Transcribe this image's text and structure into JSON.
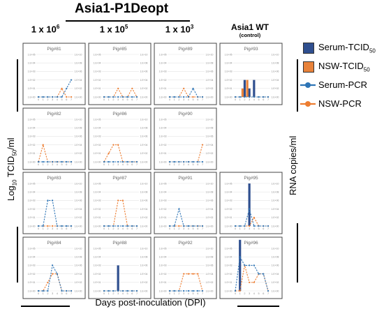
{
  "figure": {
    "title": "Asia1-P1Deopt",
    "wt_title": "Asia1 WT",
    "wt_subtitle": "(control)",
    "col_headers_main": "1 x 10",
    "col_header_exps": [
      "6",
      "5",
      "3"
    ],
    "y_left_label_main": "Log",
    "y_left_label_sub": "10",
    "y_left_label_rest": " TCID",
    "y_left_label_sub2": "50",
    "y_left_label_end": "/ml",
    "y_right_label": "RNA copies/ml",
    "x_label": "Days post-inoculation (DPI)"
  },
  "legend": [
    {
      "label": "Serum-TCID",
      "sub": "50",
      "kind": "bar",
      "color": "#2f4f8f"
    },
    {
      "label": "NSW-TCID",
      "sub": "50",
      "kind": "bar",
      "color": "#e8823a"
    },
    {
      "label": "Serum-PCR",
      "sub": "",
      "kind": "line",
      "color": "#2e75b6"
    },
    {
      "label": "NSW-PCR",
      "sub": "",
      "kind": "line",
      "color": "#ed7d31"
    }
  ],
  "chart_data": {
    "type": "line",
    "x": [
      0,
      1,
      2,
      3,
      4,
      5,
      6,
      7
    ],
    "x_tick_labels": [
      "0",
      "1",
      "2",
      "3",
      "4",
      "5",
      "6",
      "7"
    ],
    "ylim_left": [
      0,
      5
    ],
    "ylim_right": [
      0,
      10
    ],
    "left_tick_labels": [
      "1.E+00",
      "1.E+01",
      "1.E+02",
      "1.E+03",
      "1.E+04",
      "1.E+05"
    ],
    "right_tick_labels": [
      "1.E+00",
      "1.E+02",
      "1.E+04",
      "1.E+06",
      "1.E+08",
      "1.E+10"
    ],
    "panels": [
      {
        "title": "Pig#81",
        "serum_pcr": [
          0,
          0,
          0,
          0,
          0,
          0,
          2,
          4
        ],
        "nsw_pcr": [
          0,
          0,
          0,
          0,
          0,
          2,
          0,
          0
        ],
        "serum_tcid": [
          0,
          0,
          0,
          0,
          0,
          0,
          0,
          0
        ],
        "nsw_tcid": [
          0,
          0,
          0,
          0,
          0,
          0,
          0,
          0
        ]
      },
      {
        "title": "Pig#85",
        "serum_pcr": [
          0,
          0,
          0,
          0,
          0,
          0,
          0,
          0
        ],
        "nsw_pcr": [
          0,
          0,
          0,
          2,
          0,
          0,
          2,
          0
        ],
        "serum_tcid": [
          0,
          0,
          0,
          0,
          0,
          0,
          0,
          0
        ],
        "nsw_tcid": [
          0,
          0,
          0,
          0,
          0,
          0,
          0,
          0
        ]
      },
      {
        "title": "Pig#89",
        "serum_pcr": [
          0,
          0,
          0,
          0,
          0,
          2,
          0,
          0
        ],
        "nsw_pcr": [
          0,
          0,
          0,
          2,
          0,
          0,
          0,
          0
        ],
        "serum_tcid": [
          0,
          0,
          0,
          0,
          0,
          0,
          0,
          0
        ],
        "nsw_tcid": [
          0,
          0,
          0,
          0,
          0,
          0,
          0,
          0
        ]
      },
      {
        "title": "Pig#93",
        "serum_pcr": [
          0,
          0,
          0,
          0,
          0,
          0,
          0,
          0
        ],
        "nsw_pcr": [
          0,
          0,
          0,
          0,
          0,
          0,
          0,
          0
        ],
        "serum_tcid": [
          0,
          0,
          2,
          1,
          2,
          0,
          0,
          0
        ],
        "nsw_tcid": [
          0,
          0,
          1,
          2,
          0,
          0,
          0,
          0
        ]
      },
      {
        "title": "Pig#82",
        "serum_pcr": [
          0,
          0,
          0,
          0,
          0,
          0,
          0,
          0
        ],
        "nsw_pcr": [
          0,
          4,
          0,
          0,
          0,
          0,
          0,
          0
        ],
        "serum_tcid": [
          0,
          0,
          0,
          0,
          0,
          0,
          0,
          0
        ],
        "nsw_tcid": [
          0,
          0,
          0,
          0,
          0,
          0,
          0,
          0
        ]
      },
      {
        "title": "Pig#86",
        "serum_pcr": [
          0,
          0,
          0,
          0,
          0,
          0,
          0,
          0
        ],
        "nsw_pcr": [
          0,
          2,
          4,
          4,
          0,
          0,
          0,
          0
        ],
        "serum_tcid": [
          0,
          0,
          0,
          0,
          0,
          0,
          0,
          0
        ],
        "nsw_tcid": [
          0,
          0,
          0,
          0,
          0,
          0,
          0,
          0
        ]
      },
      {
        "title": "Pig#90",
        "serum_pcr": [
          0,
          0,
          0,
          0,
          0,
          0,
          0,
          0
        ],
        "nsw_pcr": [
          0,
          0,
          0,
          0,
          0,
          0,
          0,
          4
        ],
        "serum_tcid": [
          0,
          0,
          0,
          0,
          0,
          0,
          0,
          0
        ],
        "nsw_tcid": [
          0,
          0,
          0,
          0,
          0,
          0,
          0,
          0
        ]
      },
      {
        "title": "Pig#83",
        "serum_pcr": [
          0,
          0,
          6,
          6,
          0,
          0,
          0,
          0
        ],
        "nsw_pcr": [
          0,
          0,
          0,
          0,
          0,
          0,
          0,
          0
        ],
        "serum_tcid": [
          0,
          0,
          0,
          0,
          0,
          0,
          0,
          0
        ],
        "nsw_tcid": [
          0,
          0,
          0,
          0,
          0,
          0,
          0,
          0
        ]
      },
      {
        "title": "Pig#87",
        "serum_pcr": [
          0,
          0,
          0,
          0,
          0,
          0,
          0,
          0
        ],
        "nsw_pcr": [
          0,
          0,
          0,
          6,
          6,
          0,
          0,
          0
        ],
        "serum_tcid": [
          0,
          0,
          0,
          0,
          0,
          0,
          0,
          0
        ],
        "nsw_tcid": [
          0,
          0,
          0,
          0,
          0,
          0,
          0,
          0
        ]
      },
      {
        "title": "Pig#91",
        "serum_pcr": [
          0,
          0,
          4,
          0,
          0,
          0,
          0,
          0
        ],
        "nsw_pcr": [
          0,
          0,
          0,
          0,
          0,
          0,
          0,
          0
        ],
        "serum_tcid": [
          0,
          0,
          0,
          0,
          0,
          0,
          0,
          0
        ],
        "nsw_tcid": [
          0,
          0,
          0,
          0,
          0,
          0,
          0,
          0
        ]
      },
      {
        "title": "Pig#95",
        "serum_pcr": [
          0,
          0,
          0,
          4,
          0,
          0,
          0,
          0
        ],
        "nsw_pcr": [
          0,
          0,
          0,
          0,
          2,
          0,
          0,
          0
        ],
        "serum_tcid": [
          0,
          0,
          0,
          5,
          0,
          0,
          0,
          0
        ],
        "nsw_tcid": [
          0,
          0,
          0,
          0,
          0,
          0,
          0,
          0
        ]
      },
      {
        "title": "Pig#84",
        "serum_pcr": [
          0,
          0,
          0,
          6,
          4,
          0,
          0,
          0
        ],
        "nsw_pcr": [
          0,
          0,
          2,
          4,
          4,
          0,
          0,
          0
        ],
        "serum_tcid": [
          0,
          0,
          0,
          0,
          0,
          0,
          0,
          0
        ],
        "nsw_tcid": [
          0,
          0,
          0,
          0,
          0,
          0,
          0,
          0
        ]
      },
      {
        "title": "Pig#88",
        "serum_pcr": [
          0,
          0,
          0,
          0,
          0,
          0,
          0,
          0
        ],
        "nsw_pcr": [
          0,
          0,
          0,
          0,
          0,
          0,
          0,
          0
        ],
        "serum_tcid": [
          0,
          0,
          0,
          3,
          0,
          0,
          0,
          0
        ],
        "nsw_tcid": [
          0,
          0,
          0,
          0,
          0,
          0,
          0,
          0
        ]
      },
      {
        "title": "Pig#92",
        "serum_pcr": [
          0,
          0,
          0,
          0,
          0,
          0,
          0,
          0
        ],
        "nsw_pcr": [
          0,
          0,
          0,
          4,
          4,
          4,
          4,
          0
        ],
        "serum_tcid": [
          0,
          0,
          0,
          0,
          0,
          0,
          0,
          0
        ],
        "nsw_tcid": [
          0,
          0,
          0,
          0,
          0,
          0,
          0,
          0
        ]
      },
      {
        "title": "Pig#96",
        "serum_pcr": [
          0,
          8,
          6,
          6,
          6,
          4,
          4,
          0
        ],
        "nsw_pcr": [
          0,
          0,
          6,
          2,
          2,
          4,
          4,
          0
        ],
        "serum_tcid": [
          0,
          6,
          0,
          0,
          0,
          0,
          0,
          0
        ],
        "nsw_tcid": [
          0,
          0,
          0,
          0,
          0,
          0,
          0,
          0
        ]
      }
    ]
  }
}
